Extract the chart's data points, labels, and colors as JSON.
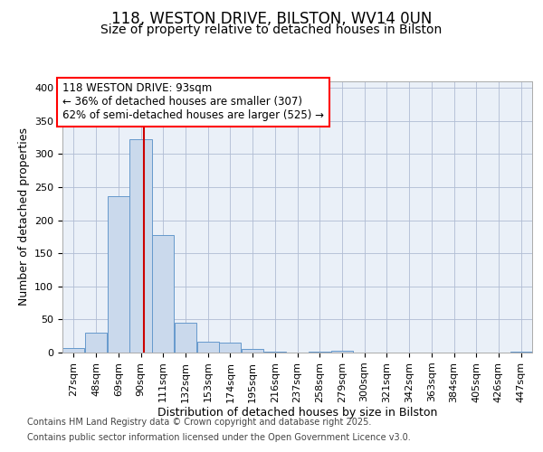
{
  "title_line1": "118, WESTON DRIVE, BILSTON, WV14 0UN",
  "title_line2": "Size of property relative to detached houses in Bilston",
  "xlabel": "Distribution of detached houses by size in Bilston",
  "ylabel": "Number of detached properties",
  "footnote1": "Contains HM Land Registry data © Crown copyright and database right 2025.",
  "footnote2": "Contains public sector information licensed under the Open Government Licence v3.0.",
  "annotation_line1": "118 WESTON DRIVE: 93sqm",
  "annotation_line2": "← 36% of detached houses are smaller (307)",
  "annotation_line3": "62% of semi-detached houses are larger (525) →",
  "bar_color": "#cad9ec",
  "bar_edge_color": "#6699cc",
  "plot_bg_color": "#eaf0f8",
  "grid_color": "#b0bcd4",
  "red_line_color": "#cc0000",
  "red_line_x": 93,
  "categories": [
    "27sqm",
    "48sqm",
    "69sqm",
    "90sqm",
    "111sqm",
    "132sqm",
    "153sqm",
    "174sqm",
    "195sqm",
    "216sqm",
    "237sqm",
    "258sqm",
    "279sqm",
    "300sqm",
    "321sqm",
    "342sqm",
    "363sqm",
    "384sqm",
    "405sqm",
    "426sqm",
    "447sqm"
  ],
  "bin_centers": [
    27,
    48,
    69,
    90,
    111,
    132,
    153,
    174,
    195,
    216,
    237,
    258,
    279,
    300,
    321,
    342,
    363,
    384,
    405,
    426,
    447
  ],
  "bin_width": 21,
  "values": [
    7,
    30,
    237,
    322,
    178,
    45,
    16,
    15,
    5,
    1,
    0,
    1,
    3,
    0,
    0,
    0,
    0,
    0,
    0,
    0,
    1
  ],
  "ylim": [
    0,
    410
  ],
  "yticks": [
    0,
    50,
    100,
    150,
    200,
    250,
    300,
    350,
    400
  ],
  "title_fontsize": 12,
  "subtitle_fontsize": 10,
  "ylabel_fontsize": 9,
  "xlabel_fontsize": 9,
  "tick_fontsize": 8,
  "annotation_fontsize": 8.5,
  "footnote_fontsize": 7
}
